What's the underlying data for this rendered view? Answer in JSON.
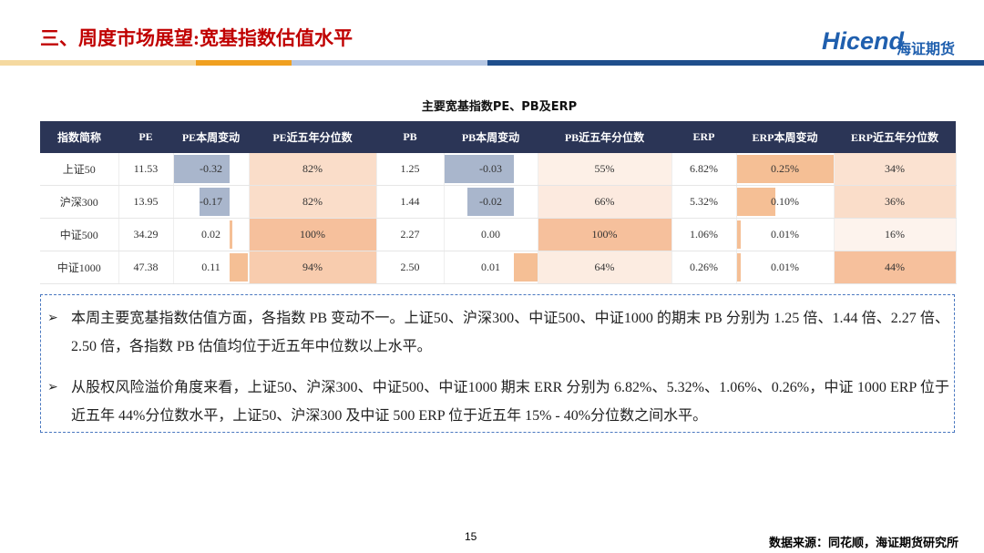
{
  "header": {
    "title": "三、周度市场展望:宽基指数估值水平",
    "logo": "Hicend",
    "logo_cn": "海证期货"
  },
  "table": {
    "title": "主要宽基指数PE、PB及ERP",
    "headers": [
      "指数简称",
      "PE",
      "PE本周变动",
      "PE近五年分位数",
      "PB",
      "PB本周变动",
      "PB近五年分位数",
      "ERP",
      "ERP本周变动",
      "ERP近五年分位数"
    ],
    "rows": [
      [
        "上证50",
        "11.53",
        "-0.32",
        "82%",
        "1.25",
        "-0.03",
        "55%",
        "6.82%",
        "0.25%",
        "34%"
      ],
      [
        "沪深300",
        "13.95",
        "-0.17",
        "82%",
        "1.44",
        "-0.02",
        "66%",
        "5.32%",
        "0.10%",
        "36%"
      ],
      [
        "中证500",
        "34.29",
        "0.02",
        "100%",
        "2.27",
        "0.00",
        "100%",
        "1.06%",
        "0.01%",
        "16%"
      ],
      [
        "中证1000",
        "47.38",
        "0.11",
        "94%",
        "2.50",
        "0.01",
        "64%",
        "0.26%",
        "0.01%",
        "44%"
      ]
    ]
  },
  "bullets": [
    "本周主要宽基指数估值方面，各指数 PB 变动不一。上证50、沪深300、中证500、中证1000 的期末 PB 分别为 1.25 倍、1.44 倍、2.27 倍、2.50 倍，各指数 PB 估值均位于近五年中位数以上水平。",
    "从股权风险溢价角度来看，上证50、沪深300、中证500、中证1000 期末 ERR 分别为 6.82%、5.32%、1.06%、0.26%，中证 1000 ERP 位于近五年 44%分位数水平，上证50、沪深300 及中证 500 ERP 位于近五年 15% - 40%分位数之间水平。"
  ],
  "footer": {
    "page": "15",
    "source": "数据来源：同花顺，海证期货研究所"
  }
}
